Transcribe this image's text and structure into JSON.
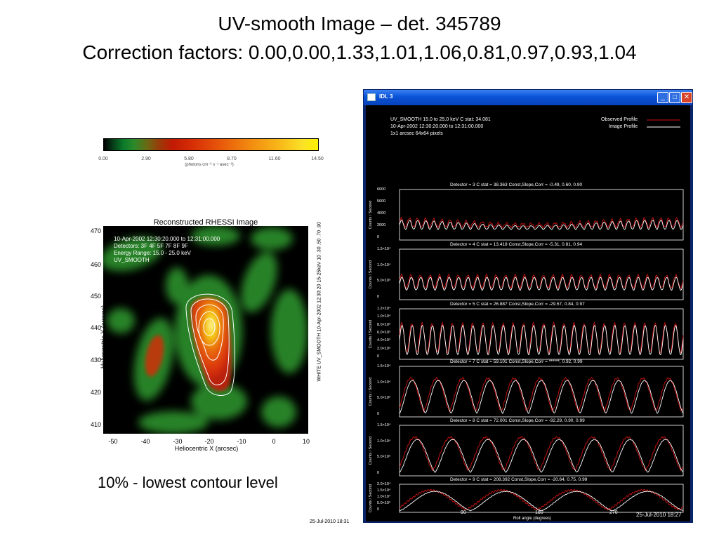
{
  "slide": {
    "title_line1": "UV-smooth Image – det. 345789",
    "title_line2": "Correction factors: 0.00,0.00,1.33,1.01,1.06,0.81,0.97,0.93,1.04",
    "caption": "10% - lowest contour level",
    "footer_timestamp": "25-Jul-2010 18:31"
  },
  "colorbar": {
    "ticks": [
      "0.00",
      "2.90",
      "5.80",
      "8.70",
      "11.60",
      "14.50"
    ],
    "unit": "(photons cm⁻² s⁻¹ asec⁻²)"
  },
  "rhessi_image": {
    "title": "Reconstructed RHESSI Image",
    "info_lines": [
      "10-Apr-2002 12:30:20.000 to 12:31:00.000",
      "Detectors: 3F 4F 5F 7F 8F 9F",
      "Energy Range: 15.0 - 25.0 keV",
      "UV_SMOOTH"
    ],
    "y_ticks": [
      "470",
      "460",
      "450",
      "440",
      "430",
      "420",
      "410"
    ],
    "x_ticks": [
      "-50",
      "-40",
      "-30",
      "-20",
      "-10",
      "0",
      "10"
    ],
    "x_label": "Heliocentric X (arcsec)",
    "y_label": "Heliocentric Y (arcsec)",
    "side_label": "WHITE UV_SMOOTH 10-Apr-2002 12:30:20 15-25keV 10 .30 .50 .70 .90"
  },
  "idl_window": {
    "title": "IDL 3",
    "header_lines": [
      "UV_SMOOTH 15.0 to 25.0 keV C stat: 34.081",
      "10-Apr-2002 12:30:20.000 to 12:31:00.000",
      "1x1 arcsec 64x64 pixels"
    ],
    "legend": [
      {
        "label": "Observed Profile",
        "color": "#d01010"
      },
      {
        "label": "Image Profile",
        "color": "#ffffff"
      }
    ],
    "panels": [
      {
        "header": "Detector = 3  C stat = 38.363  Const,Slope,Corr = -0.49, 0.60, 0.90",
        "y_ticks": [
          "6000",
          "5000",
          "4000",
          "2000",
          "0"
        ],
        "cycles": 35
      },
      {
        "header": "Detector = 4  C stat = 13.418  Const,Slope,Corr = -5.31, 0.81, 0.94",
        "y_ticks": [
          "1.5×10⁴",
          "1.0×10⁴",
          "5.0×10³",
          "0"
        ],
        "cycles": 30
      },
      {
        "header": "Detector = 5  C stat = 26.887  Const,Slope,Corr = -29.57, 0.84, 0.97",
        "y_ticks": [
          "1.2×10⁴",
          "1.0×10⁴",
          "8.0×10³",
          "6.0×10³",
          "4.0×10³",
          "2.0×10³",
          "0"
        ],
        "cycles": 28
      },
      {
        "header": "Detector = 7  C stat = 59.101  Const,Slope,Corr = ******, 0.92, 0.99",
        "y_ticks": [
          "1.5×10⁴",
          "1.0×10⁴",
          "5.0×10³",
          "0"
        ],
        "cycles": 11
      },
      {
        "header": "Detector = 8  C stat = 72.001  Const,Slope,Corr = -92.29, 0.90, 0.99",
        "y_ticks": [
          "1.5×10⁴",
          "1.0×10⁴",
          "5.0×10³",
          "0"
        ],
        "cycles": 8
      },
      {
        "header": "Detector = 9  C stat = 208.392  Const,Slope,Corr = -20.64, 0.75, 0.99",
        "y_ticks": [
          "2.0×10⁴",
          "1.5×10⁴",
          "1.0×10⁴",
          "5.0×10³",
          "0"
        ],
        "cycles": 4
      }
    ],
    "y_axis_label": "Counts / Second",
    "x_ticks": [
      "90",
      "180",
      "270"
    ],
    "x_axis_label": "Roll angle (degrees)",
    "timestamp": "25-Jul-2010  18:27"
  },
  "colors": {
    "observed": "#d01010",
    "image": "#ffffff",
    "titlebar": "#0a53d8"
  }
}
